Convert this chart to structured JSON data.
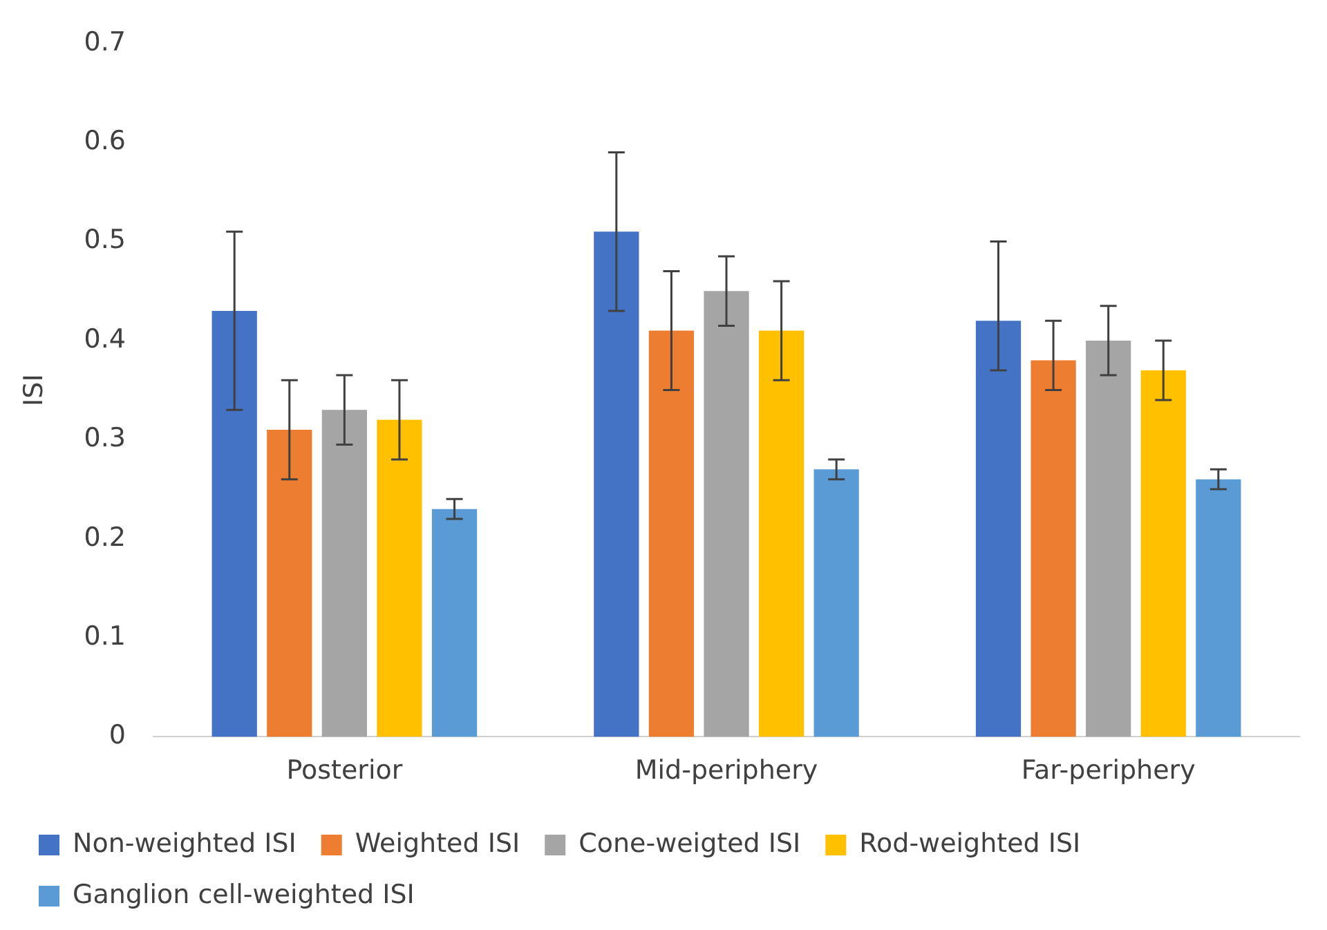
{
  "chart_data": {
    "type": "bar",
    "ylabel": "ISI",
    "categories": [
      "Posterior",
      "Mid-periphery",
      "Far-periphery"
    ],
    "series": [
      {
        "name": "Non-weighted ISI",
        "color": "#4472c4",
        "values": [
          0.43,
          0.51,
          0.42
        ],
        "errors": [
          [
            0.33,
            0.51
          ],
          [
            0.43,
            0.59
          ],
          [
            0.37,
            0.5
          ]
        ]
      },
      {
        "name": "Weighted ISI",
        "color": "#ed7d31",
        "values": [
          0.31,
          0.41,
          0.38
        ],
        "errors": [
          [
            0.26,
            0.36
          ],
          [
            0.35,
            0.47
          ],
          [
            0.35,
            0.42
          ]
        ]
      },
      {
        "name": "Cone-weigted ISI",
        "color": "#a5a5a5",
        "values": [
          0.33,
          0.45,
          0.4
        ],
        "errors": [
          [
            0.295,
            0.365
          ],
          [
            0.415,
            0.485
          ],
          [
            0.365,
            0.435
          ]
        ]
      },
      {
        "name": "Rod-weighted ISI",
        "color": "#ffc000",
        "values": [
          0.32,
          0.41,
          0.37
        ],
        "errors": [
          [
            0.28,
            0.36
          ],
          [
            0.36,
            0.46
          ],
          [
            0.34,
            0.4
          ]
        ]
      },
      {
        "name": "Ganglion cell-weighted ISI",
        "color": "#5b9bd5",
        "values": [
          0.23,
          0.27,
          0.26
        ],
        "errors": [
          [
            0.22,
            0.24
          ],
          [
            0.26,
            0.28
          ],
          [
            0.25,
            0.27
          ]
        ]
      }
    ],
    "ylim": [
      0,
      0.7
    ],
    "yticks": [
      0,
      0.1,
      0.2,
      0.3,
      0.4,
      0.5,
      0.6,
      0.7
    ],
    "grid": false,
    "legend": "bottom"
  }
}
